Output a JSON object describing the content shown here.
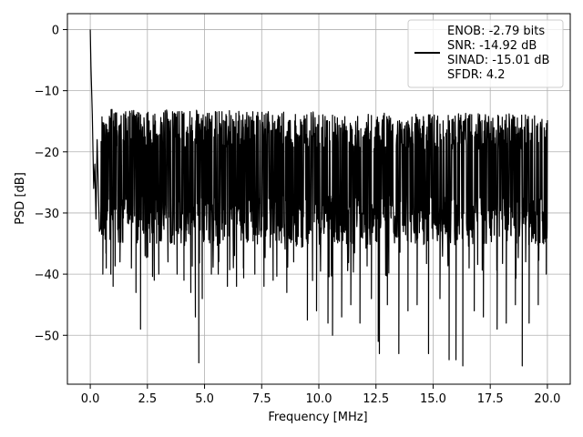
{
  "chart_data": {
    "type": "line",
    "title": "",
    "xlabel": "Frequency [MHz]",
    "ylabel": "PSD [dB]",
    "xlim": [
      -1.0,
      21.0
    ],
    "ylim": [
      -58.0,
      2.6
    ],
    "xticks": [
      0.0,
      2.5,
      5.0,
      7.5,
      10.0,
      12.5,
      15.0,
      17.5,
      20.0
    ],
    "xtick_labels": [
      "0.0",
      "2.5",
      "5.0",
      "7.5",
      "10.0",
      "12.5",
      "15.0",
      "17.5",
      "20.0"
    ],
    "yticks": [
      0,
      -10,
      -20,
      -30,
      -40,
      -50
    ],
    "ytick_labels": [
      "0",
      "−10",
      "−20",
      "−30",
      "−40",
      "−50"
    ],
    "grid": true,
    "legend_position": "top-right",
    "legend_entries": [
      "ENOB: -2.79 bits",
      "SNR: -14.92 dB",
      "SINAD: -15.01 dB",
      "SFDR: 4.2"
    ],
    "series": [
      {
        "color": "#000000",
        "description_peaks": "noise floor between roughly -35 and -15 dB with deep dips",
        "points": [
          [
            0.0,
            0.0
          ],
          [
            0.03,
            -6.0
          ],
          [
            0.06,
            -10.0
          ],
          [
            0.09,
            -14.0
          ],
          [
            0.12,
            -20.0
          ],
          [
            0.15,
            -26.0
          ],
          [
            0.2,
            -22.0
          ],
          [
            0.25,
            -31.0
          ],
          [
            0.3,
            -18.0
          ],
          [
            0.4,
            -33.0
          ]
        ],
        "dips": [
          [
            0.55,
            -40
          ],
          [
            0.7,
            -39
          ],
          [
            0.9,
            -40
          ],
          [
            1.0,
            -42
          ],
          [
            1.3,
            -38
          ],
          [
            1.8,
            -39
          ],
          [
            2.0,
            -43
          ],
          [
            2.2,
            -49
          ],
          [
            2.4,
            -37
          ],
          [
            2.8,
            -41
          ],
          [
            3.0,
            -40
          ],
          [
            3.4,
            -38
          ],
          [
            3.8,
            -40
          ],
          [
            4.1,
            -41
          ],
          [
            4.4,
            -43
          ],
          [
            4.6,
            -47
          ],
          [
            4.75,
            -54.5
          ],
          [
            4.9,
            -44
          ],
          [
            5.3,
            -40
          ],
          [
            5.6,
            -40
          ],
          [
            6.0,
            -42
          ],
          [
            6.4,
            -42
          ],
          [
            6.7,
            -39
          ],
          [
            7.2,
            -40
          ],
          [
            7.6,
            -42
          ],
          [
            8.0,
            -41
          ],
          [
            8.6,
            -43
          ],
          [
            8.9,
            -38
          ],
          [
            9.5,
            -47.5
          ],
          [
            9.9,
            -46
          ],
          [
            10.4,
            -48
          ],
          [
            10.6,
            -50
          ],
          [
            11.0,
            -47
          ],
          [
            11.4,
            -45
          ],
          [
            11.8,
            -48
          ],
          [
            12.3,
            -44
          ],
          [
            12.6,
            -51
          ],
          [
            12.65,
            -53
          ],
          [
            13.0,
            -45
          ],
          [
            13.5,
            -53
          ],
          [
            13.9,
            -46
          ],
          [
            14.3,
            -45
          ],
          [
            14.8,
            -53
          ],
          [
            15.3,
            -44
          ],
          [
            15.7,
            -54
          ],
          [
            16.0,
            -54
          ],
          [
            16.3,
            -55
          ],
          [
            16.8,
            -46
          ],
          [
            17.2,
            -47
          ],
          [
            17.8,
            -49
          ],
          [
            18.2,
            -48
          ],
          [
            18.6,
            -45
          ],
          [
            18.9,
            -55
          ],
          [
            19.2,
            -48
          ],
          [
            19.6,
            -45
          ],
          [
            19.95,
            -40
          ]
        ]
      }
    ]
  }
}
